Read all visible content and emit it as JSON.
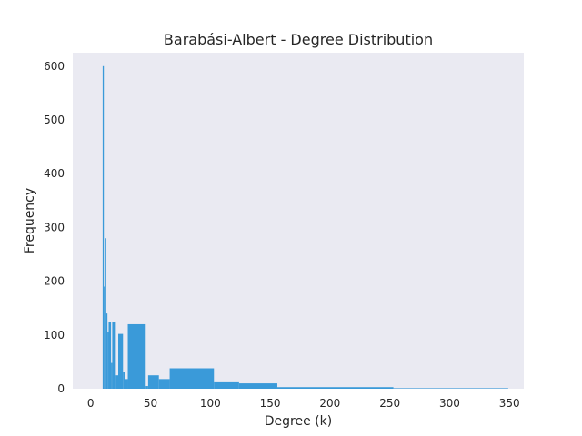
{
  "chart_data": {
    "type": "bar",
    "title": "Barabási-Albert - Degree Distribution",
    "xlabel": "Degree (k)",
    "ylabel": "Frequency",
    "xlim": [
      -15,
      362
    ],
    "ylim": [
      0,
      625
    ],
    "xticks": [
      0,
      50,
      100,
      150,
      200,
      250,
      300,
      350
    ],
    "yticks": [
      0,
      100,
      200,
      300,
      400,
      500,
      600
    ],
    "grid": false,
    "colors": {
      "bar": "#3a9ad9",
      "plot_bg": "#eaeaf2"
    },
    "bins": [
      {
        "x0": 10,
        "x1": 11,
        "y": 600
      },
      {
        "x0": 11,
        "x1": 12,
        "y": 190
      },
      {
        "x0": 12,
        "x1": 13,
        "y": 280
      },
      {
        "x0": 13,
        "x1": 14,
        "y": 140
      },
      {
        "x0": 14,
        "x1": 15,
        "y": 105
      },
      {
        "x0": 15,
        "x1": 17,
        "y": 125
      },
      {
        "x0": 17,
        "x1": 18,
        "y": 48
      },
      {
        "x0": 18,
        "x1": 21,
        "y": 125
      },
      {
        "x0": 21,
        "x1": 23,
        "y": 25
      },
      {
        "x0": 23,
        "x1": 27,
        "y": 102
      },
      {
        "x0": 27,
        "x1": 29,
        "y": 32
      },
      {
        "x0": 29,
        "x1": 31,
        "y": 18
      },
      {
        "x0": 31,
        "x1": 46,
        "y": 120
      },
      {
        "x0": 46,
        "x1": 48,
        "y": 5
      },
      {
        "x0": 48,
        "x1": 57,
        "y": 25
      },
      {
        "x0": 57,
        "x1": 66,
        "y": 18
      },
      {
        "x0": 66,
        "x1": 103,
        "y": 38
      },
      {
        "x0": 103,
        "x1": 124,
        "y": 12
      },
      {
        "x0": 124,
        "x1": 156,
        "y": 10
      },
      {
        "x0": 156,
        "x1": 253,
        "y": 3
      },
      {
        "x0": 253,
        "x1": 349,
        "y": 1
      }
    ]
  }
}
